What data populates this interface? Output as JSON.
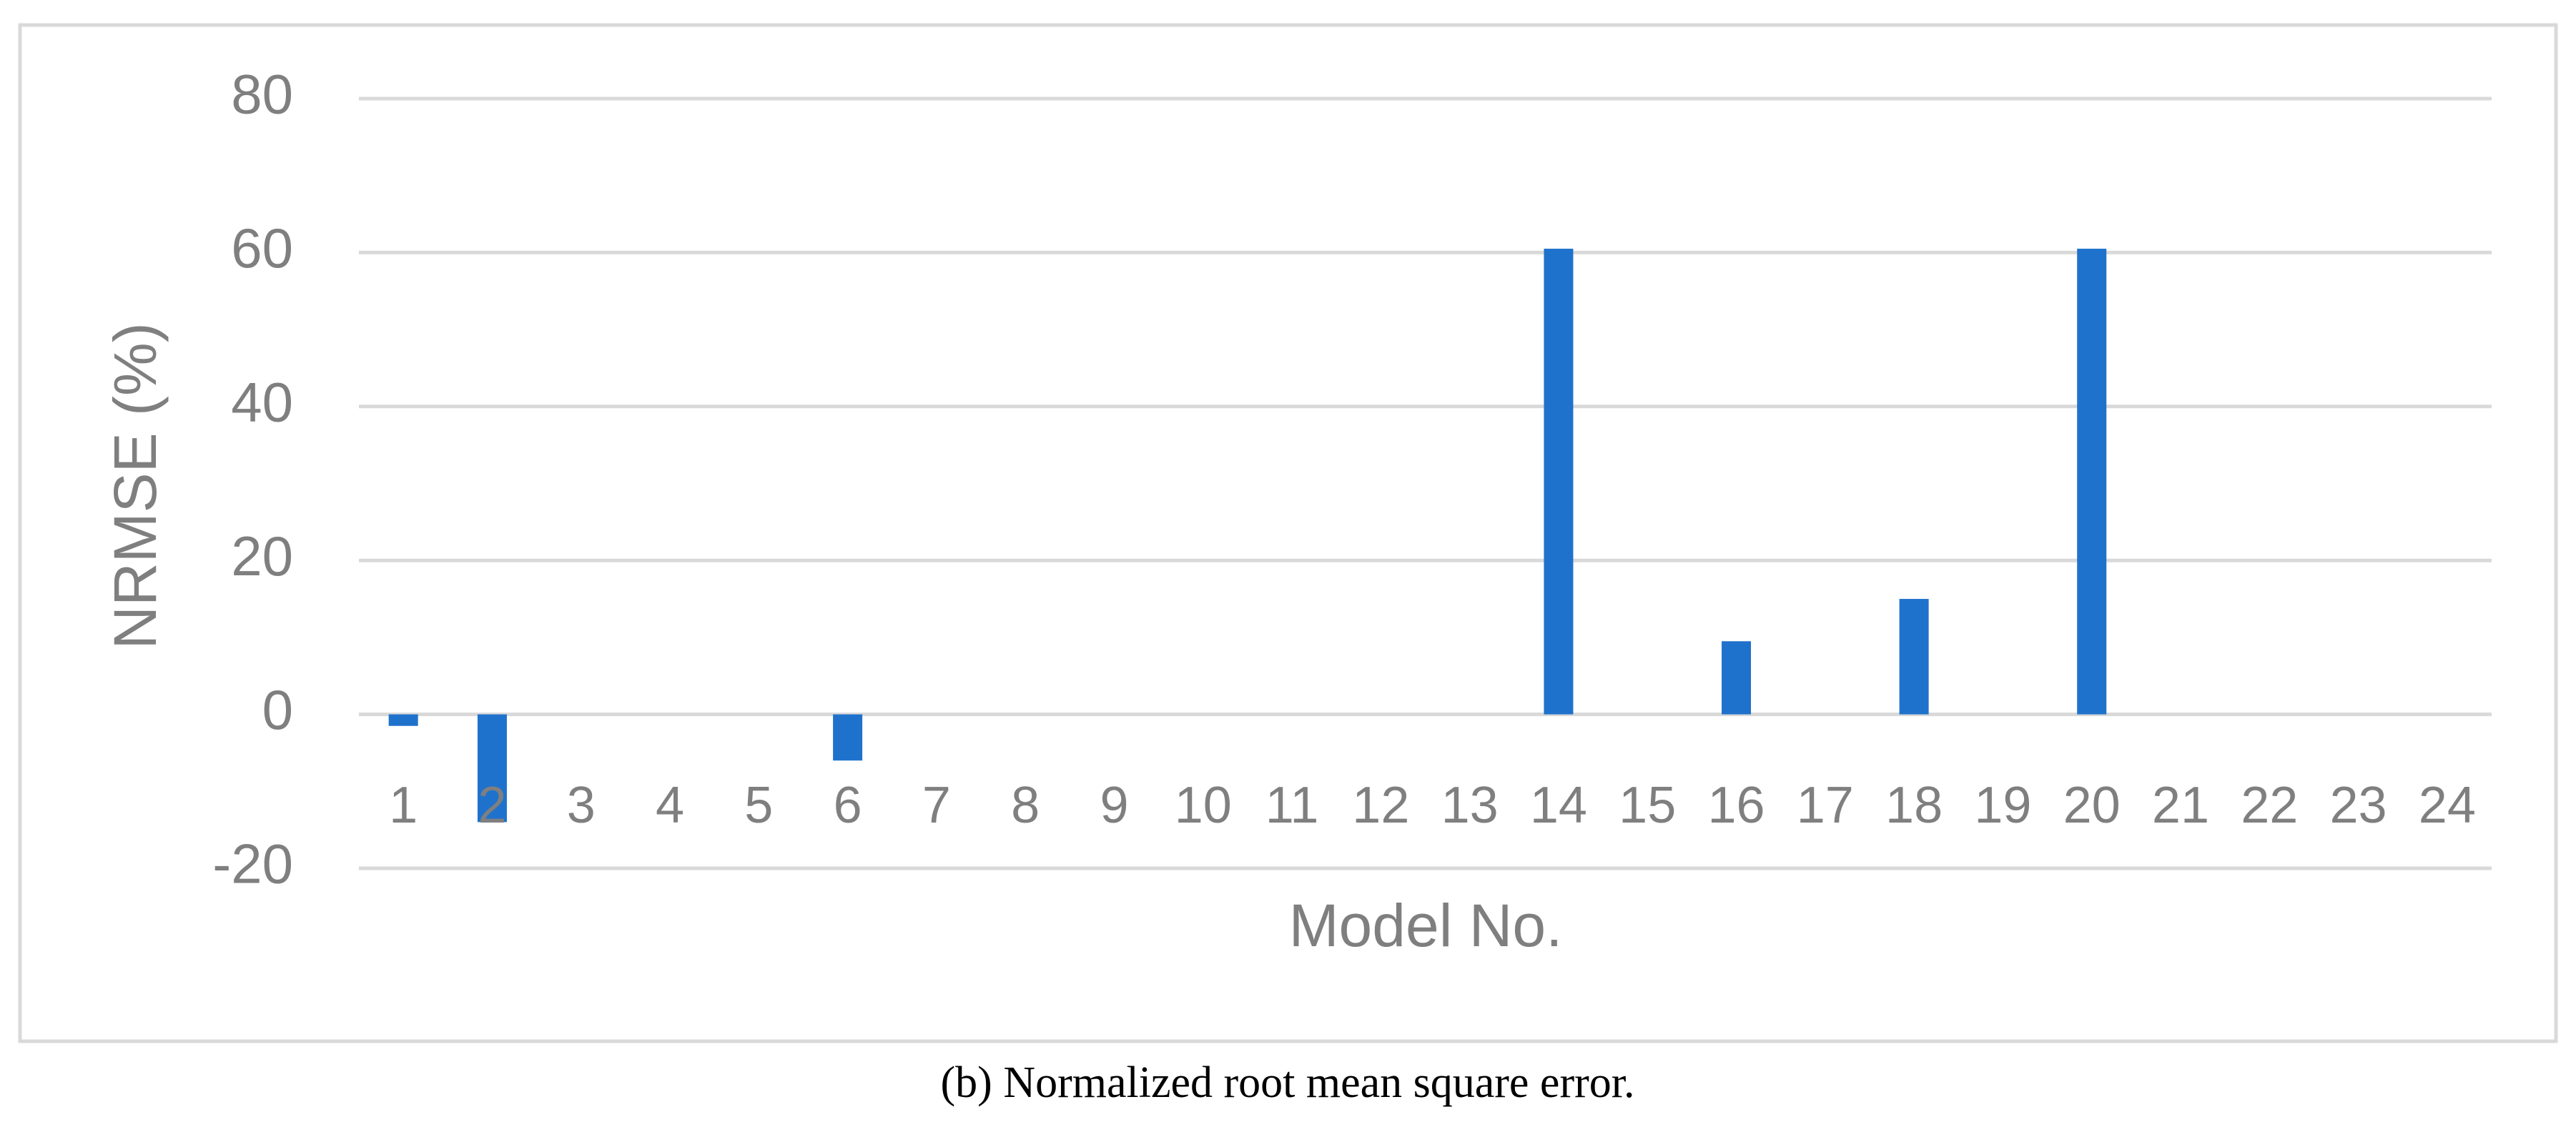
{
  "chart_data": {
    "type": "bar",
    "caption": "(b) Normalized root mean square error.",
    "x_label": "Model No.",
    "y_label": "NRMSE  (%)",
    "categories": [
      "1",
      "2",
      "3",
      "4",
      "5",
      "6",
      "7",
      "8",
      "9",
      "10",
      "11",
      "12",
      "13",
      "14",
      "15",
      "16",
      "17",
      "18",
      "19",
      "20",
      "21",
      "22",
      "23",
      "24"
    ],
    "values": [
      -1.5,
      -14,
      0,
      0,
      0,
      -6,
      0,
      0,
      0,
      0,
      0,
      0,
      0,
      60.5,
      0,
      9.5,
      0,
      15,
      0,
      60.5,
      0,
      0,
      0,
      0
    ],
    "color": "#1f72cc",
    "ylim": [
      -20,
      80
    ],
    "yticks": [
      -20,
      0,
      20,
      40,
      60,
      80
    ],
    "grid": true
  }
}
